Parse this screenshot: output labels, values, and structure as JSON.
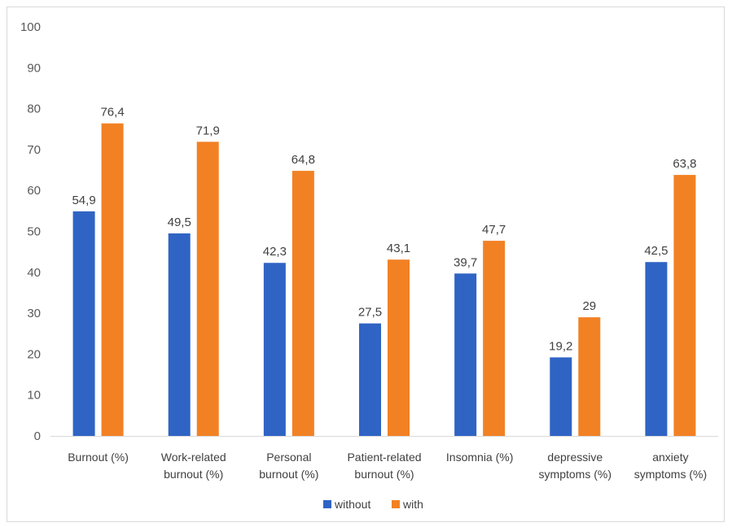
{
  "chart_data": {
    "type": "bar",
    "categories": [
      [
        "Burnout (%)"
      ],
      [
        "Work-related",
        "burnout (%)"
      ],
      [
        "Personal",
        "burnout (%)"
      ],
      [
        "Patient-related",
        "burnout (%)"
      ],
      [
        "Insomnia  (%)"
      ],
      [
        "depressive",
        "symptoms (%)"
      ],
      [
        "anxiety",
        "symptoms (%)"
      ]
    ],
    "series": [
      {
        "name": "without",
        "color": "#2f64c4",
        "values": [
          54.9,
          49.5,
          42.3,
          27.5,
          39.7,
          19.2,
          42.5
        ],
        "labels": [
          "54,9",
          "49,5",
          "42,3",
          "27,5",
          "39,7",
          "19,2",
          "42,5"
        ]
      },
      {
        "name": "with",
        "color": "#f28124",
        "values": [
          76.4,
          71.9,
          64.8,
          43.1,
          47.7,
          29,
          63.8
        ],
        "labels": [
          "76,4",
          "71,9",
          "64,8",
          "43,1",
          "47,7",
          "29",
          "63,8"
        ]
      }
    ],
    "ylim": [
      0,
      100
    ],
    "yticks": [
      0,
      10,
      20,
      30,
      40,
      50,
      60,
      70,
      80,
      90,
      100
    ],
    "grid": false,
    "legend": "bottom"
  }
}
